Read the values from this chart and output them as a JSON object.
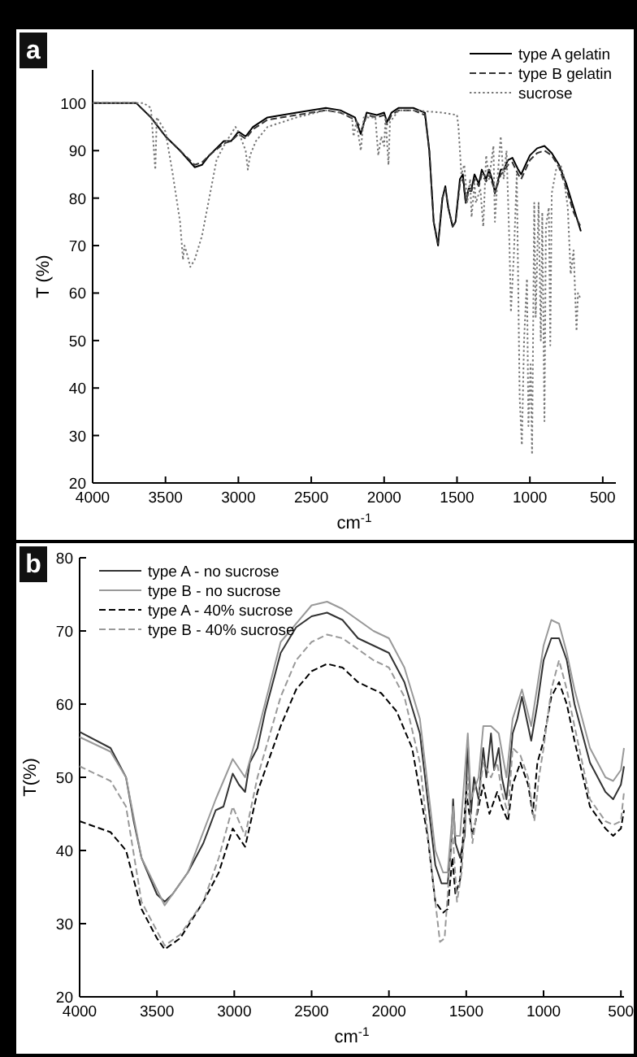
{
  "chart_data": [
    {
      "type": "line",
      "title": "a",
      "xlabel": "cm$^{-1}$",
      "ylabel": "T (%)",
      "xlim": [
        4000,
        410
      ],
      "ylim": [
        20,
        107
      ],
      "xticks": [
        4000,
        3500,
        3000,
        2500,
        2000,
        1500,
        1000,
        500
      ],
      "yticks": [
        20,
        30,
        40,
        50,
        60,
        70,
        80,
        90,
        100
      ],
      "legend": "top right",
      "series": [
        {
          "name": "type A gelatin",
          "color": "#000000",
          "line_style": "solid",
          "x": [
            4000,
            3700,
            3600,
            3500,
            3400,
            3300,
            3250,
            3200,
            3100,
            3050,
            3000,
            2950,
            2900,
            2800,
            2600,
            2400,
            2300,
            2200,
            2160,
            2120,
            2050,
            2000,
            1980,
            1950,
            1900,
            1800,
            1720,
            1690,
            1660,
            1630,
            1600,
            1580,
            1560,
            1530,
            1510,
            1480,
            1460,
            1440,
            1420,
            1400,
            1380,
            1350,
            1330,
            1300,
            1280,
            1250,
            1240,
            1200,
            1180,
            1150,
            1120,
            1080,
            1060,
            1030,
            1000,
            950,
            900,
            850,
            800,
            750,
            700,
            660,
            650
          ],
          "values": [
            100,
            100,
            97,
            93,
            90,
            86.5,
            87,
            89,
            92,
            92,
            94,
            93,
            95,
            97,
            98,
            99,
            98.5,
            97,
            93.5,
            98,
            97.5,
            98,
            96,
            98,
            99,
            99,
            98,
            90,
            75,
            70,
            80,
            82.5,
            78,
            74,
            75,
            84,
            85,
            79,
            82,
            82,
            85,
            83,
            86,
            84,
            86,
            83,
            81,
            86,
            86,
            88,
            88.5,
            86,
            85,
            87,
            89,
            90.5,
            91,
            89.5,
            87,
            83,
            78,
            74,
            73
          ]
        },
        {
          "name": "type B gelatin",
          "color": "#333333",
          "line_style": "dashed",
          "x": [
            4000,
            3700,
            3600,
            3500,
            3400,
            3300,
            3250,
            3200,
            3100,
            3050,
            3000,
            2950,
            2900,
            2800,
            2600,
            2400,
            2300,
            2200,
            2150,
            2120,
            2050,
            2000,
            1980,
            1950,
            1900,
            1800,
            1720,
            1690,
            1660,
            1630,
            1600,
            1580,
            1560,
            1530,
            1510,
            1480,
            1460,
            1440,
            1420,
            1400,
            1380,
            1350,
            1330,
            1300,
            1280,
            1250,
            1240,
            1200,
            1180,
            1150,
            1120,
            1080,
            1060,
            1030,
            1000,
            950,
            900,
            850,
            800,
            750,
            700,
            660,
            650
          ],
          "values": [
            100,
            100,
            97,
            93,
            90,
            87,
            87.5,
            89,
            91.5,
            92,
            93.5,
            92.5,
            94.5,
            96.5,
            97.5,
            98.5,
            98,
            96.5,
            94.5,
            97.5,
            97,
            97.5,
            95.5,
            97.5,
            98.5,
            98.5,
            97.5,
            90,
            75,
            70.5,
            80,
            82,
            78,
            74,
            75,
            83,
            84,
            79,
            81.5,
            81.5,
            84,
            82.5,
            85,
            83.5,
            85,
            82.5,
            81,
            85,
            85.5,
            87,
            87.5,
            85,
            84,
            86,
            88,
            89.5,
            90,
            89,
            86.5,
            82,
            77,
            74.5,
            74
          ]
        },
        {
          "name": "sucrose",
          "color": "#777777",
          "line_style": "dotted",
          "x": [
            4000,
            3650,
            3600,
            3570,
            3560,
            3500,
            3450,
            3400,
            3380,
            3370,
            3350,
            3330,
            3300,
            3250,
            3200,
            3150,
            3100,
            3020,
            3000,
            2950,
            2935,
            2920,
            2880,
            2800,
            2600,
            2400,
            2300,
            2220,
            2210,
            2190,
            2160,
            2140,
            2060,
            2040,
            2020,
            2000,
            1990,
            1970,
            1960,
            1900,
            1800,
            1600,
            1500,
            1490,
            1470,
            1450,
            1430,
            1410,
            1400,
            1380,
            1370,
            1340,
            1320,
            1300,
            1280,
            1250,
            1240,
            1220,
            1200,
            1180,
            1160,
            1140,
            1130,
            1110,
            1090,
            1070,
            1055,
            1040,
            1020,
            1010,
            995,
            985,
            970,
            960,
            940,
            925,
            915,
            900,
            890,
            870,
            860,
            850,
            820,
            790,
            770,
            740,
            720,
            700,
            680,
            670,
            655
          ],
          "values": [
            100,
            100,
            99,
            86,
            97,
            94,
            85,
            75,
            67,
            70,
            68,
            65.5,
            67,
            72,
            80,
            88,
            91,
            95,
            94,
            90,
            86,
            89,
            92,
            95,
            97,
            98.5,
            98,
            97,
            93,
            96,
            90,
            97,
            97,
            89,
            93,
            91,
            97,
            87,
            96,
            98.5,
            98.5,
            98,
            97.5,
            95,
            85,
            87,
            79,
            84,
            76,
            83,
            79,
            82,
            74,
            89,
            84,
            91,
            75,
            85,
            93,
            84,
            90,
            70,
            56,
            68,
            85,
            38,
            28,
            50,
            63,
            32,
            45,
            26,
            79,
            55,
            79,
            50,
            77,
            33,
            74,
            78,
            49,
            81,
            86,
            87,
            85,
            78,
            64,
            69,
            52,
            60,
            59
          ]
        }
      ]
    },
    {
      "type": "line",
      "title": "b",
      "xlabel": "cm$^{-1}$",
      "ylabel": "T(%)",
      "xlim": [
        4000,
        480
      ],
      "ylim": [
        20,
        80
      ],
      "xticks": [
        4000,
        3500,
        3000,
        2500,
        2000,
        1500,
        1000,
        500
      ],
      "yticks": [
        20,
        30,
        40,
        50,
        60,
        70,
        80
      ],
      "legend": "top left",
      "series": [
        {
          "name": "type A - no sucrose",
          "color": "#333333",
          "line_style": "solid",
          "x": [
            4000,
            3800,
            3700,
            3650,
            3600,
            3500,
            3450,
            3400,
            3300,
            3200,
            3120,
            3070,
            3010,
            2970,
            2930,
            2900,
            2850,
            2800,
            2700,
            2600,
            2500,
            2400,
            2300,
            2200,
            2100,
            2000,
            1900,
            1800,
            1750,
            1700,
            1660,
            1620,
            1600,
            1585,
            1570,
            1540,
            1510,
            1490,
            1470,
            1450,
            1420,
            1390,
            1370,
            1340,
            1320,
            1290,
            1270,
            1240,
            1220,
            1200,
            1170,
            1140,
            1110,
            1080,
            1040,
            1000,
            950,
            900,
            850,
            800,
            700,
            600,
            550,
            500,
            480
          ],
          "values": [
            56.2,
            54,
            50,
            44,
            39,
            34,
            33,
            34,
            37,
            41,
            45.5,
            46,
            50.5,
            49,
            48,
            52,
            54,
            59,
            67,
            70.5,
            72,
            72.5,
            71.5,
            69,
            68,
            67,
            63,
            56,
            47,
            38,
            35.5,
            35.5,
            40,
            47,
            41,
            39,
            42,
            55,
            45,
            50,
            47,
            54,
            50,
            56,
            51,
            54,
            50,
            47,
            51,
            56,
            58,
            61,
            58,
            55,
            60,
            66,
            69,
            69,
            66,
            60,
            52,
            48,
            47,
            49,
            51.5
          ]
        },
        {
          "name": "type B - no sucrose",
          "color": "#999999",
          "line_style": "solid",
          "x": [
            4000,
            3800,
            3700,
            3600,
            3450,
            3300,
            3120,
            3010,
            2930,
            2850,
            2700,
            2500,
            2400,
            2300,
            2100,
            2000,
            1900,
            1800,
            1750,
            1700,
            1650,
            1620,
            1585,
            1570,
            1540,
            1490,
            1470,
            1420,
            1390,
            1340,
            1290,
            1240,
            1200,
            1140,
            1080,
            1000,
            950,
            900,
            850,
            800,
            700,
            600,
            550,
            500,
            480
          ],
          "values": [
            55.5,
            53.5,
            50,
            39,
            32.5,
            37,
            47,
            52.5,
            50,
            56,
            68.5,
            73.5,
            74,
            73,
            70,
            69,
            65,
            58,
            49,
            40,
            37,
            37,
            46,
            42,
            42,
            56,
            47,
            50,
            57,
            57,
            56,
            50,
            58,
            62,
            57,
            68,
            71.5,
            71,
            67,
            62,
            54,
            50,
            49.5,
            51,
            54
          ]
        },
        {
          "name": "type A - 40% sucrose",
          "color": "#000000",
          "line_style": "dashed",
          "x": [
            4000,
            3800,
            3700,
            3600,
            3500,
            3450,
            3350,
            3200,
            3100,
            3010,
            2930,
            2850,
            2700,
            2600,
            2500,
            2400,
            2300,
            2200,
            2050,
            1950,
            1850,
            1750,
            1700,
            1650,
            1620,
            1590,
            1570,
            1540,
            1500,
            1460,
            1420,
            1390,
            1350,
            1300,
            1270,
            1230,
            1200,
            1150,
            1100,
            1070,
            1040,
            1000,
            950,
            900,
            850,
            800,
            700,
            600,
            550,
            500,
            480
          ],
          "values": [
            44,
            42.5,
            40,
            32,
            28,
            26.5,
            28,
            33,
            37,
            43,
            40.5,
            48,
            57,
            62,
            64.5,
            65.5,
            65,
            63,
            61.5,
            59,
            54,
            42,
            33,
            31.5,
            32,
            39,
            34,
            36,
            48,
            42,
            46,
            49,
            45,
            48,
            46,
            44,
            49,
            52,
            49,
            45,
            52,
            55,
            61,
            63,
            60,
            55,
            46,
            43,
            42,
            43,
            45.5
          ]
        },
        {
          "name": "type B - 40% sucrose",
          "color": "#999999",
          "line_style": "dashed",
          "x": [
            4000,
            3800,
            3700,
            3600,
            3500,
            3450,
            3350,
            3200,
            3100,
            3010,
            2930,
            2850,
            2700,
            2600,
            2500,
            2400,
            2300,
            2100,
            2000,
            1900,
            1800,
            1700,
            1670,
            1640,
            1590,
            1560,
            1530,
            1490,
            1460,
            1420,
            1390,
            1340,
            1300,
            1270,
            1230,
            1200,
            1150,
            1100,
            1060,
            1030,
            1000,
            950,
            900,
            850,
            800,
            700,
            600,
            550,
            500,
            480
          ],
          "values": [
            51.5,
            49.5,
            46,
            33,
            29,
            27,
            28.5,
            33,
            39,
            46,
            42,
            50,
            61,
            66,
            68.5,
            69.5,
            69,
            66,
            65,
            61,
            52,
            33,
            27.5,
            28,
            43,
            33,
            37,
            50,
            41,
            47,
            52,
            50,
            52,
            48,
            45,
            54,
            53,
            50,
            44,
            50,
            54,
            62,
            66,
            62,
            57,
            47,
            44,
            43.5,
            44,
            48
          ]
        }
      ]
    }
  ]
}
